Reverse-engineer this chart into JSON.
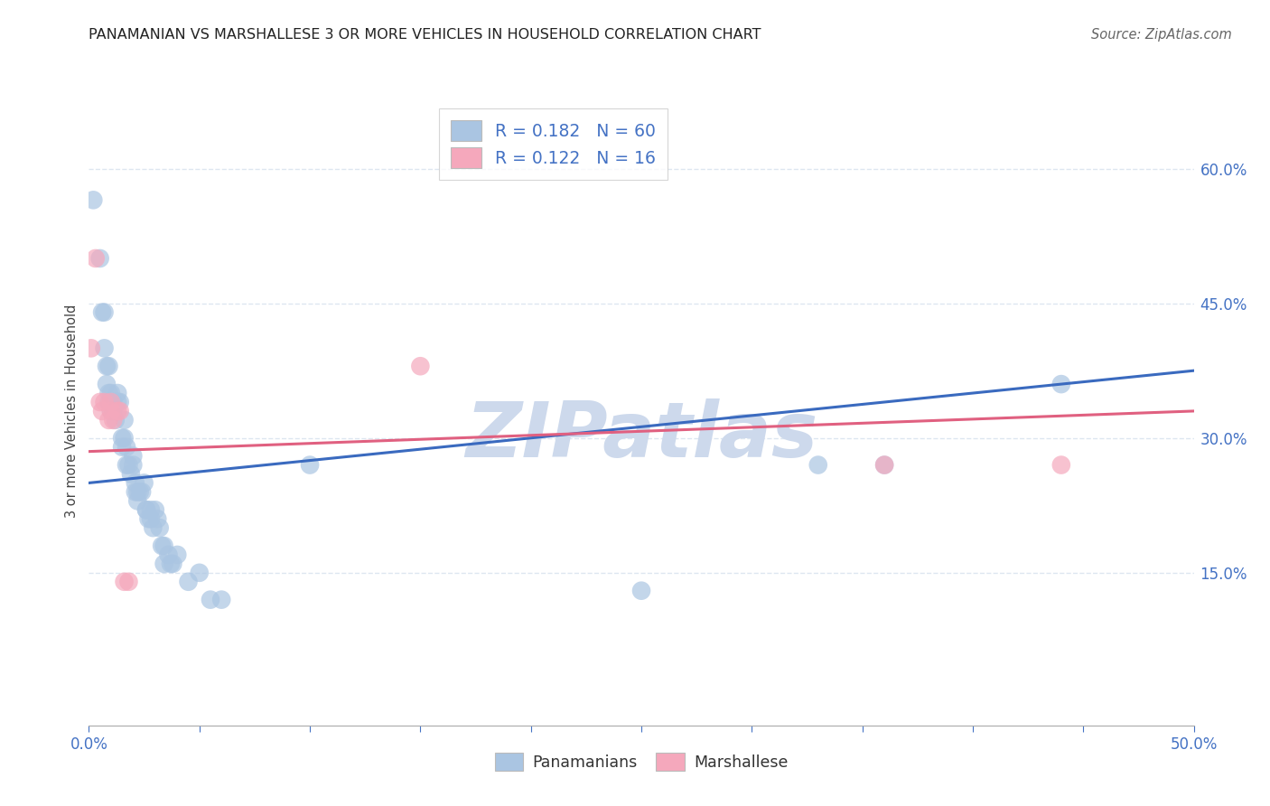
{
  "title": "PANAMANIAN VS MARSHALLESE 3 OR MORE VEHICLES IN HOUSEHOLD CORRELATION CHART",
  "source": "Source: ZipAtlas.com",
  "ylabel": "3 or more Vehicles in Household",
  "xlim": [
    0.0,
    0.5
  ],
  "ylim": [
    -0.02,
    0.68
  ],
  "xticks": [
    0.0,
    0.05,
    0.1,
    0.15,
    0.2,
    0.25,
    0.3,
    0.35,
    0.4,
    0.45,
    0.5
  ],
  "xticklabels": [
    "0.0%",
    "",
    "",
    "",
    "",
    "",
    "",
    "",
    "",
    "",
    "50.0%"
  ],
  "yticks_right": [
    0.15,
    0.3,
    0.45,
    0.6
  ],
  "yticklabels_right": [
    "15.0%",
    "30.0%",
    "45.0%",
    "60.0%"
  ],
  "R_blue": 0.182,
  "N_blue": 60,
  "R_pink": 0.122,
  "N_pink": 16,
  "blue_color": "#aac5e2",
  "pink_color": "#f5a8bc",
  "line_blue": "#3a6abf",
  "line_pink": "#e06080",
  "watermark": "ZIPatlas",
  "watermark_color": "#cdd9ec",
  "legend_label_blue": "Panamanians",
  "legend_label_pink": "Marshallese",
  "blue_points": [
    [
      0.002,
      0.565
    ],
    [
      0.005,
      0.5
    ],
    [
      0.006,
      0.44
    ],
    [
      0.007,
      0.44
    ],
    [
      0.007,
      0.4
    ],
    [
      0.008,
      0.38
    ],
    [
      0.008,
      0.36
    ],
    [
      0.009,
      0.38
    ],
    [
      0.009,
      0.35
    ],
    [
      0.009,
      0.34
    ],
    [
      0.01,
      0.35
    ],
    [
      0.01,
      0.33
    ],
    [
      0.011,
      0.33
    ],
    [
      0.011,
      0.34
    ],
    [
      0.012,
      0.32
    ],
    [
      0.013,
      0.35
    ],
    [
      0.013,
      0.34
    ],
    [
      0.014,
      0.34
    ],
    [
      0.015,
      0.3
    ],
    [
      0.015,
      0.29
    ],
    [
      0.016,
      0.32
    ],
    [
      0.016,
      0.3
    ],
    [
      0.017,
      0.29
    ],
    [
      0.017,
      0.27
    ],
    [
      0.018,
      0.27
    ],
    [
      0.019,
      0.26
    ],
    [
      0.02,
      0.28
    ],
    [
      0.02,
      0.27
    ],
    [
      0.021,
      0.25
    ],
    [
      0.021,
      0.24
    ],
    [
      0.022,
      0.24
    ],
    [
      0.022,
      0.23
    ],
    [
      0.023,
      0.24
    ],
    [
      0.024,
      0.24
    ],
    [
      0.025,
      0.25
    ],
    [
      0.026,
      0.22
    ],
    [
      0.026,
      0.22
    ],
    [
      0.027,
      0.21
    ],
    [
      0.028,
      0.22
    ],
    [
      0.028,
      0.21
    ],
    [
      0.029,
      0.2
    ],
    [
      0.03,
      0.22
    ],
    [
      0.031,
      0.21
    ],
    [
      0.032,
      0.2
    ],
    [
      0.033,
      0.18
    ],
    [
      0.034,
      0.18
    ],
    [
      0.034,
      0.16
    ],
    [
      0.036,
      0.17
    ],
    [
      0.037,
      0.16
    ],
    [
      0.038,
      0.16
    ],
    [
      0.04,
      0.17
    ],
    [
      0.045,
      0.14
    ],
    [
      0.05,
      0.15
    ],
    [
      0.055,
      0.12
    ],
    [
      0.06,
      0.12
    ],
    [
      0.1,
      0.27
    ],
    [
      0.25,
      0.13
    ],
    [
      0.33,
      0.27
    ],
    [
      0.36,
      0.27
    ],
    [
      0.44,
      0.36
    ]
  ],
  "pink_points": [
    [
      0.001,
      0.4
    ],
    [
      0.003,
      0.5
    ],
    [
      0.005,
      0.34
    ],
    [
      0.006,
      0.33
    ],
    [
      0.007,
      0.34
    ],
    [
      0.009,
      0.32
    ],
    [
      0.01,
      0.34
    ],
    [
      0.01,
      0.33
    ],
    [
      0.011,
      0.32
    ],
    [
      0.013,
      0.33
    ],
    [
      0.014,
      0.33
    ],
    [
      0.016,
      0.14
    ],
    [
      0.018,
      0.14
    ],
    [
      0.15,
      0.38
    ],
    [
      0.36,
      0.27
    ],
    [
      0.44,
      0.27
    ]
  ],
  "blue_line_x": [
    0.0,
    0.5
  ],
  "blue_line_y": [
    0.25,
    0.375
  ],
  "pink_line_x": [
    0.0,
    0.5
  ],
  "pink_line_y": [
    0.285,
    0.33
  ],
  "background_color": "#ffffff",
  "grid_color": "#dde6f0",
  "figsize": [
    14.06,
    8.92
  ],
  "dpi": 100
}
